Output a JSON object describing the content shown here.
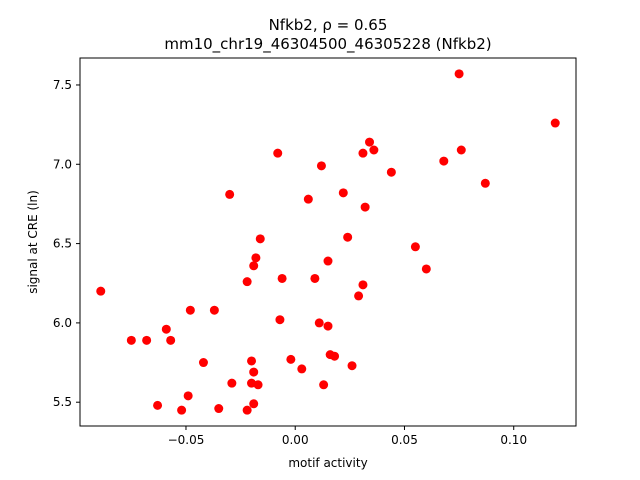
{
  "chart_data": {
    "type": "scatter",
    "title_line1": "Nfkb2, ρ = 0.65",
    "title_line2": "mm10_chr19_46304500_46305228 (Nfkb2)",
    "xlabel": "motif activity",
    "ylabel": "signal at CRE (ln)",
    "xlim": [
      -0.0985,
      0.1285
    ],
    "ylim": [
      5.35,
      7.67
    ],
    "xticks": [
      {
        "value": -0.05,
        "label": "−0.05"
      },
      {
        "value": 0.0,
        "label": "0.00"
      },
      {
        "value": 0.05,
        "label": "0.05"
      },
      {
        "value": 0.1,
        "label": "0.10"
      }
    ],
    "yticks": [
      {
        "value": 5.5,
        "label": "5.5"
      },
      {
        "value": 6.0,
        "label": "6.0"
      },
      {
        "value": 6.5,
        "label": "6.5"
      },
      {
        "value": 7.0,
        "label": "7.0"
      },
      {
        "value": 7.5,
        "label": "7.5"
      }
    ],
    "marker_color": "#ff0000",
    "grid": false,
    "points": [
      {
        "x": -0.089,
        "y": 6.2
      },
      {
        "x": -0.075,
        "y": 5.89
      },
      {
        "x": -0.068,
        "y": 5.89
      },
      {
        "x": -0.063,
        "y": 5.48
      },
      {
        "x": -0.059,
        "y": 5.96
      },
      {
        "x": -0.057,
        "y": 5.89
      },
      {
        "x": -0.052,
        "y": 5.45
      },
      {
        "x": -0.049,
        "y": 5.54
      },
      {
        "x": -0.048,
        "y": 6.08
      },
      {
        "x": -0.042,
        "y": 5.75
      },
      {
        "x": -0.037,
        "y": 6.08
      },
      {
        "x": -0.035,
        "y": 5.46
      },
      {
        "x": -0.03,
        "y": 6.81
      },
      {
        "x": -0.029,
        "y": 5.62
      },
      {
        "x": -0.022,
        "y": 5.45
      },
      {
        "x": -0.022,
        "y": 6.26
      },
      {
        "x": -0.02,
        "y": 5.62
      },
      {
        "x": -0.02,
        "y": 5.76
      },
      {
        "x": -0.019,
        "y": 5.69
      },
      {
        "x": -0.019,
        "y": 5.49
      },
      {
        "x": -0.019,
        "y": 6.36
      },
      {
        "x": -0.018,
        "y": 6.41
      },
      {
        "x": -0.017,
        "y": 5.61
      },
      {
        "x": -0.016,
        "y": 6.53
      },
      {
        "x": -0.008,
        "y": 7.07
      },
      {
        "x": -0.007,
        "y": 6.02
      },
      {
        "x": -0.006,
        "y": 6.28
      },
      {
        "x": -0.002,
        "y": 5.77
      },
      {
        "x": 0.003,
        "y": 5.71
      },
      {
        "x": 0.006,
        "y": 6.78
      },
      {
        "x": 0.009,
        "y": 6.28
      },
      {
        "x": 0.011,
        "y": 6.0
      },
      {
        "x": 0.012,
        "y": 6.99
      },
      {
        "x": 0.013,
        "y": 5.61
      },
      {
        "x": 0.015,
        "y": 6.39
      },
      {
        "x": 0.015,
        "y": 5.98
      },
      {
        "x": 0.016,
        "y": 5.8
      },
      {
        "x": 0.018,
        "y": 5.79
      },
      {
        "x": 0.022,
        "y": 6.82
      },
      {
        "x": 0.024,
        "y": 6.54
      },
      {
        "x": 0.026,
        "y": 5.73
      },
      {
        "x": 0.029,
        "y": 6.17
      },
      {
        "x": 0.031,
        "y": 6.24
      },
      {
        "x": 0.031,
        "y": 7.07
      },
      {
        "x": 0.032,
        "y": 6.73
      },
      {
        "x": 0.034,
        "y": 7.14
      },
      {
        "x": 0.036,
        "y": 7.09
      },
      {
        "x": 0.044,
        "y": 6.95
      },
      {
        "x": 0.055,
        "y": 6.48
      },
      {
        "x": 0.06,
        "y": 6.34
      },
      {
        "x": 0.068,
        "y": 7.02
      },
      {
        "x": 0.075,
        "y": 7.57
      },
      {
        "x": 0.076,
        "y": 7.09
      },
      {
        "x": 0.087,
        "y": 6.88
      },
      {
        "x": 0.119,
        "y": 7.26
      }
    ]
  }
}
